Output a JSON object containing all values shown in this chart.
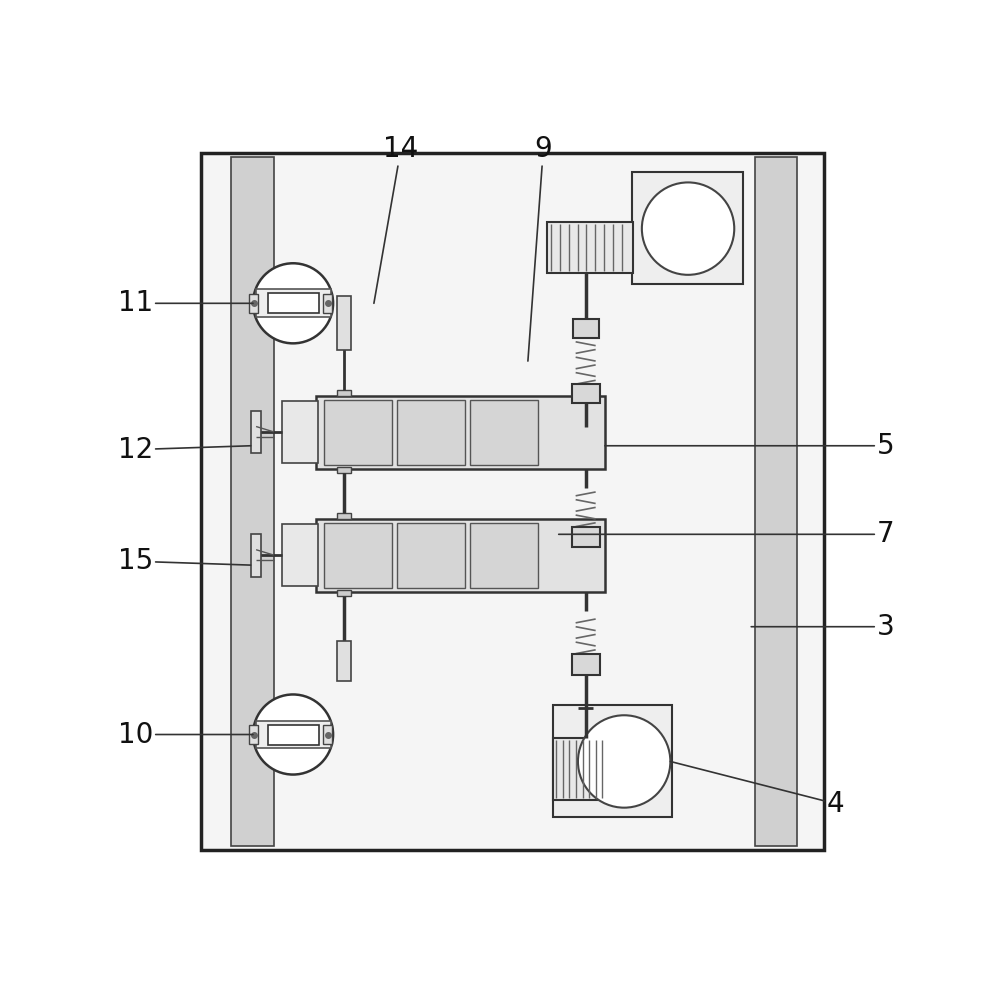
{
  "bg": "#ffffff",
  "panel_fc": "#f5f5f5",
  "panel_ec": "#222222",
  "strip_fc": "#d0d0d0",
  "strip_ec": "#444444",
  "block_fc": "#e0e0e0",
  "block_ec": "#333333",
  "dark_fc": "#c8c8c8",
  "shaft_color": "#333333",
  "gear_color": "#888888",
  "lw_main": 2.0,
  "lw_thin": 1.2,
  "label_fs": 20
}
